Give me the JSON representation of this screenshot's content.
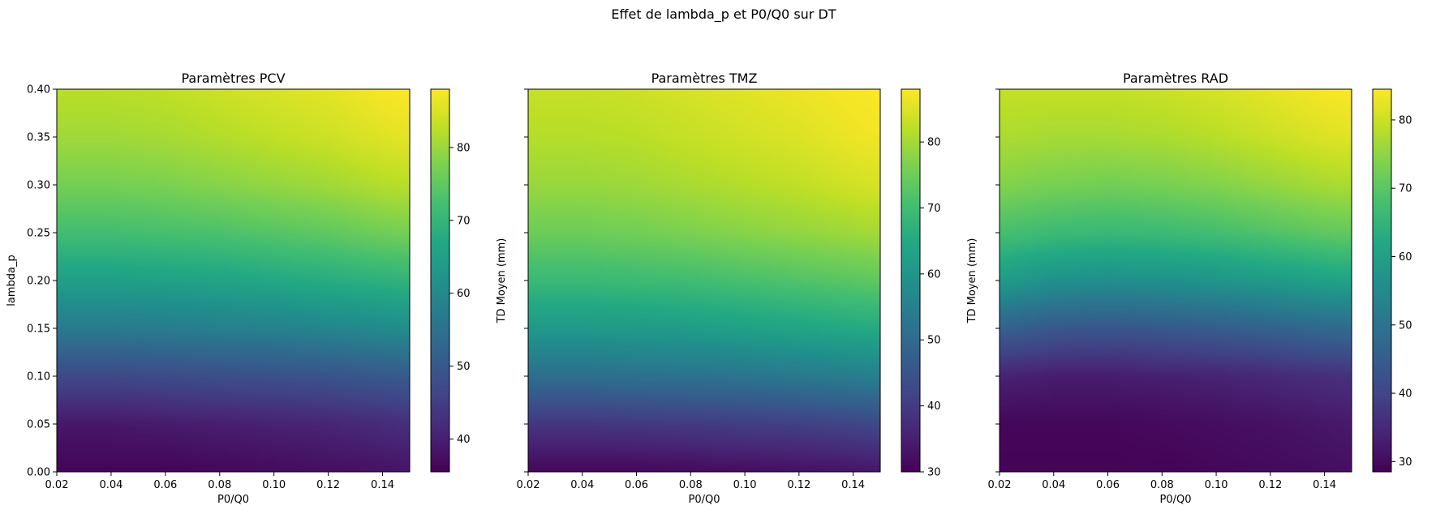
{
  "figure": {
    "suptitle": "Effet de lambda_p et P0/Q0 sur DT"
  },
  "chart_data": [
    {
      "type": "heatmap",
      "title": "Paramètres PCV",
      "xlabel": "P0/Q0",
      "ylabel": "lambda_p",
      "xlim": [
        0.02,
        0.15
      ],
      "ylim": [
        0.0,
        0.4
      ],
      "x_ticks": [
        "0.02",
        "0.04",
        "0.06",
        "0.08",
        "0.10",
        "0.12",
        "0.14"
      ],
      "y_ticks": [
        "0.00",
        "0.05",
        "0.10",
        "0.15",
        "0.20",
        "0.25",
        "0.30",
        "0.35",
        "0.40"
      ],
      "colormap": "viridis",
      "colorbar_label": "TD Moyen (mm)",
      "colorbar_range": [
        35.5,
        88
      ],
      "colorbar_ticks": [
        "40",
        "50",
        "60",
        "70",
        "80"
      ],
      "value_grid": {
        "x": [
          0.02,
          0.04,
          0.06,
          0.08,
          0.1,
          0.12,
          0.14,
          0.15
        ],
        "y": [
          0.0,
          0.05,
          0.1,
          0.15,
          0.2,
          0.25,
          0.3,
          0.35,
          0.4
        ],
        "z": [
          [
            36,
            36,
            36,
            36.5,
            37,
            37.5,
            38,
            38.5
          ],
          [
            39,
            39,
            39.5,
            40,
            40.5,
            41,
            42,
            42.5
          ],
          [
            47,
            47,
            47.5,
            48,
            48.5,
            49,
            50,
            50.5
          ],
          [
            57,
            57,
            57.5,
            58,
            58.5,
            59.5,
            60.5,
            61
          ],
          [
            65,
            65,
            65.5,
            66,
            67,
            68,
            69,
            69.5
          ],
          [
            72,
            72,
            72.5,
            73,
            74,
            75,
            76.5,
            77
          ],
          [
            77,
            77,
            77.5,
            78.5,
            79.5,
            80.5,
            82,
            82.5
          ],
          [
            80.5,
            80.5,
            81,
            82,
            83,
            84,
            85.5,
            86
          ],
          [
            82.5,
            82.5,
            83,
            84,
            85,
            86,
            87.5,
            88
          ]
        ]
      }
    },
    {
      "type": "heatmap",
      "title": "Paramètres TMZ",
      "xlabel": "P0/Q0",
      "ylabel": "",
      "xlim": [
        0.02,
        0.15
      ],
      "ylim": [
        0.0,
        0.4
      ],
      "x_ticks": [
        "0.02",
        "0.04",
        "0.06",
        "0.08",
        "0.10",
        "0.12",
        "0.14"
      ],
      "colormap": "viridis",
      "colorbar_label": "TD Moyen (mm)",
      "colorbar_range": [
        30,
        88
      ],
      "colorbar_ticks": [
        "30",
        "40",
        "50",
        "60",
        "70",
        "80"
      ],
      "value_grid": {
        "x": [
          0.02,
          0.04,
          0.06,
          0.08,
          0.1,
          0.12,
          0.14,
          0.15
        ],
        "y": [
          0.0,
          0.05,
          0.1,
          0.15,
          0.2,
          0.25,
          0.3,
          0.35,
          0.4
        ],
        "z": [
          [
            31,
            31,
            31,
            31.5,
            32,
            32.5,
            33,
            33.5
          ],
          [
            39,
            39,
            39.5,
            40,
            40.5,
            41,
            42,
            42.5
          ],
          [
            51,
            51,
            51.5,
            52,
            52.5,
            53.5,
            54.5,
            55
          ],
          [
            61,
            61,
            61.5,
            62,
            63,
            64,
            65,
            65.5
          ],
          [
            69,
            69,
            69.5,
            70,
            71,
            72,
            73,
            73.5
          ],
          [
            75,
            75,
            75.5,
            76.5,
            77.5,
            78.5,
            79.5,
            80
          ],
          [
            79,
            79,
            79.5,
            80.5,
            81.5,
            82.5,
            84,
            84.5
          ],
          [
            81.5,
            81.5,
            82,
            83,
            84,
            85,
            86.5,
            87
          ],
          [
            83,
            83,
            83.5,
            84.5,
            85.5,
            86.5,
            87.5,
            88
          ]
        ]
      }
    },
    {
      "type": "heatmap",
      "title": "Paramètres RAD",
      "xlabel": "P0/Q0",
      "ylabel": "",
      "xlim": [
        0.02,
        0.15
      ],
      "ylim": [
        0.0,
        0.4
      ],
      "x_ticks": [
        "0.02",
        "0.04",
        "0.06",
        "0.08",
        "0.10",
        "0.12",
        "0.14"
      ],
      "colormap": "viridis",
      "colorbar_label": "TD Moyen (mm)",
      "colorbar_range": [
        28.5,
        84.5
      ],
      "colorbar_ticks": [
        "30",
        "40",
        "50",
        "60",
        "70",
        "80"
      ],
      "value_grid": {
        "x": [
          0.02,
          0.04,
          0.06,
          0.08,
          0.1,
          0.12,
          0.14,
          0.15
        ],
        "y": [
          0.0,
          0.05,
          0.1,
          0.15,
          0.2,
          0.25,
          0.3,
          0.35,
          0.4
        ],
        "z": [
          [
            29,
            29,
            29,
            29,
            29.5,
            30,
            30.5,
            31
          ],
          [
            29.5,
            29.5,
            29.5,
            30,
            30.5,
            31,
            32,
            32.5
          ],
          [
            34,
            33,
            33,
            33.5,
            34,
            35,
            36,
            36.5
          ],
          [
            46,
            44,
            43.5,
            44,
            45,
            46,
            47.5,
            48
          ],
          [
            59,
            56.5,
            56,
            56.5,
            57.5,
            59,
            60.5,
            61
          ],
          [
            68,
            66.5,
            66,
            66.5,
            67.5,
            69,
            70.5,
            71
          ],
          [
            74,
            73,
            72.5,
            73,
            74,
            75.5,
            77,
            77.5
          ],
          [
            77.5,
            77,
            77,
            77.5,
            78.5,
            80,
            81.5,
            82
          ],
          [
            79.5,
            79.5,
            79.5,
            80,
            81,
            82.5,
            84,
            84.5
          ]
        ]
      }
    }
  ]
}
